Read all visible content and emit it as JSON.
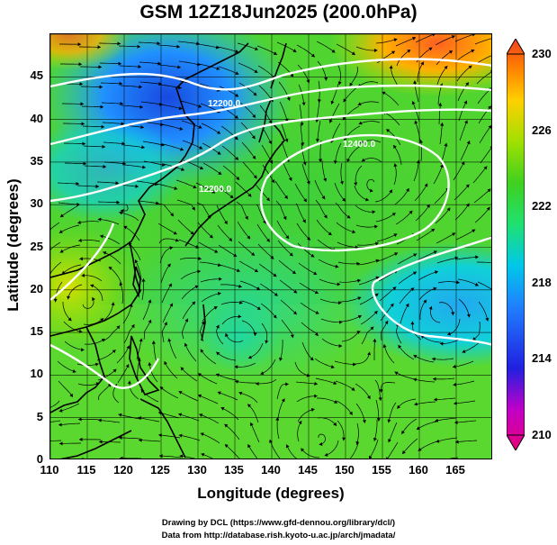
{
  "title": "GSM 12Z18Jun2025 (200.0hPa)",
  "xlabel": "Longitude (degrees)",
  "ylabel": "Latitude  (degrees)",
  "credit_line1": "Drawing by DCL (https://www.gfd-dennou.org/library/dcl/)",
  "credit_line2": "Data from http://database.rish.kyoto-u.ac.jp/arch/jmadata/",
  "axes": {
    "x_ticks": [
      "110",
      "115",
      "120",
      "125",
      "130",
      "135",
      "140",
      "145",
      "150",
      "155",
      "160",
      "165"
    ],
    "y_ticks": [
      "0",
      "5",
      "10",
      "15",
      "20",
      "25",
      "30",
      "35",
      "40",
      "45"
    ],
    "x_range": [
      110,
      170
    ],
    "y_range": [
      0,
      50
    ]
  },
  "colorbar": {
    "ticks": [
      "230",
      "226",
      "222",
      "218",
      "214",
      "210"
    ],
    "range": [
      210,
      230
    ],
    "colors": [
      "#e8007a",
      "#c000c8",
      "#2020e0",
      "#2080ff",
      "#00c8e8",
      "#20e070",
      "#40d020",
      "#a0e000",
      "#ffd000",
      "#ff8000",
      "#f04020"
    ]
  },
  "contour_labels": [
    "12200.0",
    "12400.0",
    "12200.0"
  ]
}
